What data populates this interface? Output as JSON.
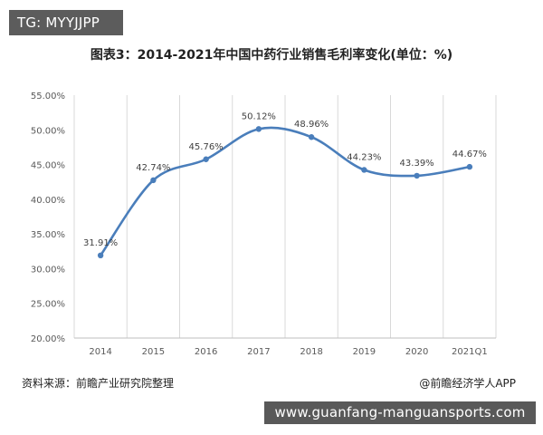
{
  "overlay_tag": "TG: MYYJJPP",
  "footer_banner": "www.guanfang-manguansports.com",
  "chart_data": {
    "type": "line",
    "title": "图表3：2014-2021年中国中药行业销售毛利率变化(单位：%)",
    "categories": [
      "2014",
      "2015",
      "2016",
      "2017",
      "2018",
      "2019",
      "2020",
      "2021Q1"
    ],
    "series": [
      {
        "values": [
          31.91,
          42.74,
          45.76,
          50.12,
          48.96,
          44.23,
          43.39,
          44.67
        ],
        "labels": [
          "31.91%",
          "42.74%",
          "45.76%",
          "50.12%",
          "48.96%",
          "44.23%",
          "43.39%",
          "44.67%"
        ],
        "color": "#4a7ebb",
        "smooth": true
      }
    ],
    "ylim": [
      20,
      55
    ],
    "yticks": [
      "20.00%",
      "25.00%",
      "30.00%",
      "35.00%",
      "40.00%",
      "45.00%",
      "50.00%",
      "55.00%"
    ],
    "xlabel": "",
    "ylabel": "",
    "grid": "vertical",
    "legend": "none",
    "source": "资料来源：前瞻产业研究院整理",
    "credit": "@前瞻经济学人APP"
  }
}
